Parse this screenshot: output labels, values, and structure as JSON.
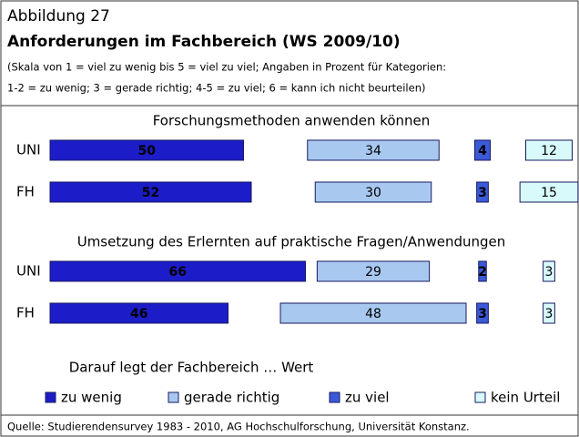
{
  "header": {
    "label": "Abbildung 27",
    "title": "Anforderungen im Fachbereich (WS 2009/10)",
    "subtitle": [
      "(Skala von 1 = viel zu wenig bis 5 = viel zu viel; Angaben in Prozent für Kategorien:",
      "1-2 = zu wenig; 3 = gerade richtig; 4-5 = zu viel; 6 = kann ich nicht beurteilen)"
    ]
  },
  "chart_data": [
    {
      "type": "bar",
      "title": "Forschungsmethoden anwenden können",
      "categories": [
        "UNI",
        "FH"
      ],
      "series": [
        {
          "name": "zu wenig",
          "color": "#1c1cc8",
          "values": [
            50,
            52
          ]
        },
        {
          "name": "gerade richtig",
          "color": "#a8c8f0",
          "values": [
            34,
            30
          ]
        },
        {
          "name": "zu viel",
          "color": "#3a5ad8",
          "values": [
            4,
            3
          ]
        },
        {
          "name": "kein Urteil",
          "color": "#d8fafa",
          "values": [
            12,
            15
          ]
        }
      ]
    },
    {
      "type": "bar",
      "title": "Umsetzung des Erlernten auf praktische Fragen/Anwendungen",
      "categories": [
        "UNI",
        "FH"
      ],
      "series": [
        {
          "name": "zu wenig",
          "color": "#1c1cc8",
          "values": [
            66,
            46
          ]
        },
        {
          "name": "gerade richtig",
          "color": "#a8c8f0",
          "values": [
            29,
            48
          ]
        },
        {
          "name": "zu viel",
          "color": "#3a5ad8",
          "values": [
            2,
            3
          ]
        },
        {
          "name": "kein Urteil",
          "color": "#d8fafa",
          "values": [
            3,
            3
          ]
        }
      ]
    }
  ],
  "legend_title": "Darauf legt der Fachbereich … Wert",
  "source": "Quelle: Studierendensurvey 1983 - 2010, AG Hochschulforschung, Universität Konstanz."
}
